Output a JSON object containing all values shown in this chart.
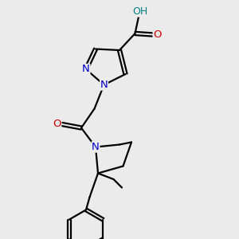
{
  "bg_color": "#ebebeb",
  "atom_colors": {
    "N": "#0000cc",
    "O": "#cc0000",
    "C": "#000000",
    "H": "#008080"
  },
  "line_color": "#000000",
  "line_width": 1.6,
  "figsize": [
    3.0,
    3.0
  ],
  "dpi": 100
}
